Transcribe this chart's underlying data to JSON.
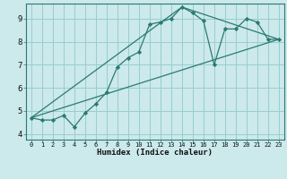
{
  "xlabel": "Humidex (Indice chaleur)",
  "bg_color": "#cce9eb",
  "grid_color": "#99cdd2",
  "line_color": "#2a7a72",
  "spine_color": "#2a7a72",
  "xlim": [
    -0.5,
    23.5
  ],
  "ylim": [
    3.75,
    9.65
  ],
  "xticks": [
    0,
    1,
    2,
    3,
    4,
    5,
    6,
    7,
    8,
    9,
    10,
    11,
    12,
    13,
    14,
    15,
    16,
    17,
    18,
    19,
    20,
    21,
    22,
    23
  ],
  "yticks": [
    4,
    5,
    6,
    7,
    8,
    9
  ],
  "series1_x": [
    0,
    1,
    2,
    3,
    4,
    5,
    6,
    7,
    8,
    9,
    10,
    11,
    12,
    13,
    14,
    15,
    16,
    17,
    18,
    19,
    20,
    21,
    22,
    23
  ],
  "series1_y": [
    4.7,
    4.6,
    4.6,
    4.8,
    4.3,
    4.9,
    5.3,
    5.8,
    6.9,
    7.3,
    7.55,
    8.75,
    8.85,
    9.0,
    9.5,
    9.25,
    8.9,
    7.0,
    8.55,
    8.55,
    9.0,
    8.85,
    8.1,
    8.1
  ],
  "line1_x": [
    0,
    23
  ],
  "line1_y": [
    4.7,
    8.1
  ],
  "line2_x": [
    0,
    14,
    23
  ],
  "line2_y": [
    4.7,
    9.5,
    8.1
  ]
}
